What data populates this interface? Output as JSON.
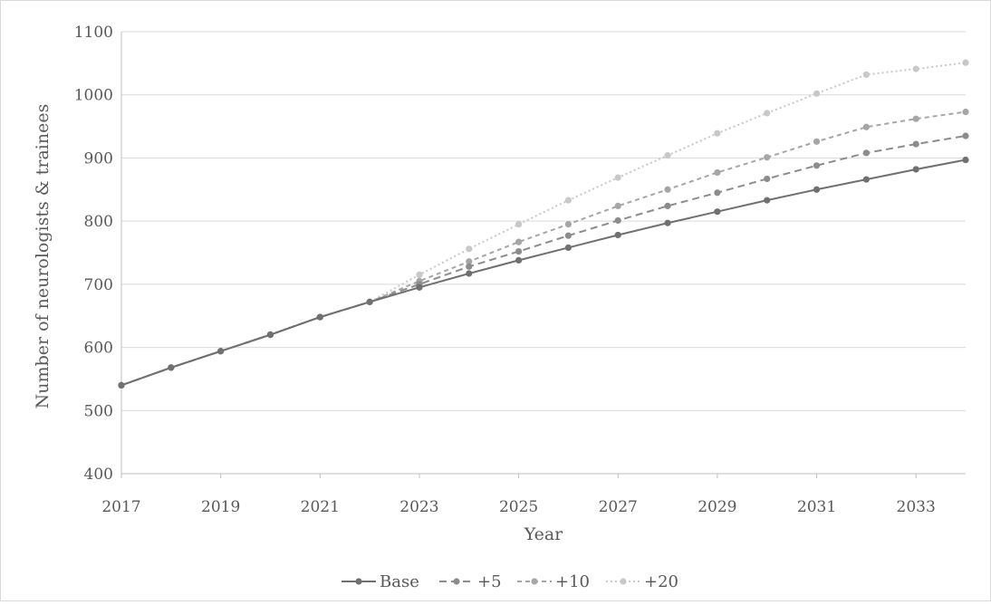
{
  "chart_data": {
    "type": "line",
    "title": "",
    "xlabel": "Year",
    "ylabel": "Number of neurologists & trainees",
    "xlim": [
      2017,
      2034
    ],
    "ylim": [
      400,
      1100
    ],
    "x_ticks": [
      2017,
      2019,
      2021,
      2023,
      2025,
      2027,
      2029,
      2031,
      2033
    ],
    "y_ticks": [
      400,
      500,
      600,
      700,
      800,
      900,
      1000,
      1100
    ],
    "x": [
      2017,
      2018,
      2019,
      2020,
      2021,
      2022,
      2023,
      2024,
      2025,
      2026,
      2027,
      2028,
      2029,
      2030,
      2031,
      2032,
      2033,
      2034
    ],
    "grid": "horizontal",
    "legend_position": "bottom",
    "series": [
      {
        "name": "Base",
        "color": "#707070",
        "dash": "solid",
        "values": [
          540,
          568,
          594,
          620,
          648,
          672,
          695,
          717,
          738,
          758,
          778,
          797,
          815,
          833,
          850,
          866,
          882,
          897
        ]
      },
      {
        "name": "+5",
        "color": "#8c8c8c",
        "dash": "dashed",
        "values": [
          540,
          568,
          594,
          620,
          648,
          672,
          700,
          728,
          752,
          777,
          801,
          824,
          845,
          867,
          888,
          908,
          922,
          935
        ]
      },
      {
        "name": "+10",
        "color": "#a6a6a6",
        "dash": "short-dashed",
        "values": [
          540,
          568,
          594,
          620,
          648,
          672,
          705,
          736,
          767,
          795,
          824,
          850,
          877,
          901,
          926,
          949,
          962,
          973
        ]
      },
      {
        "name": "+20",
        "color": "#c8c8c8",
        "dash": "dotted",
        "values": [
          540,
          568,
          594,
          621,
          648,
          672,
          715,
          756,
          795,
          833,
          869,
          904,
          939,
          971,
          1002,
          1032,
          1041,
          1051
        ]
      }
    ]
  }
}
